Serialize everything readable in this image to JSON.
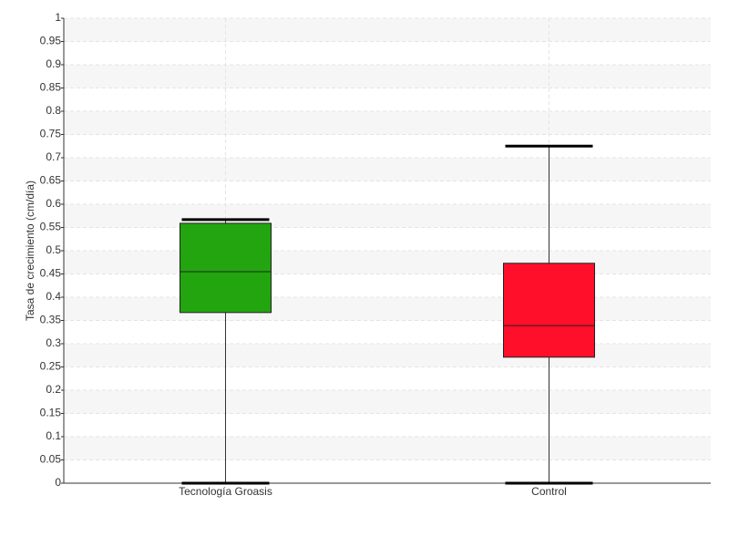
{
  "chart_data": {
    "type": "box",
    "y_label": "Tasa de crecimiento (cm/día)",
    "categories": [
      "Tecnología Groasis",
      "Control"
    ],
    "boxes": [
      {
        "min": 0,
        "q1": 0.367,
        "median": 0.455,
        "q3": 0.559,
        "max": 0.567
      },
      {
        "min": 0,
        "q1": 0.271,
        "median": 0.339,
        "q3": 0.473,
        "max": 0.725
      }
    ],
    "colors": [
      "#22a50f",
      "#ff0f2a"
    ],
    "ylim": [
      0,
      1
    ],
    "yticks": [
      0,
      0.05,
      0.1,
      0.15,
      0.2,
      0.25,
      0.3,
      0.35,
      0.4,
      0.45,
      0.5,
      0.55,
      0.6,
      0.65,
      0.7,
      0.75,
      0.8,
      0.85,
      0.9,
      0.95,
      1
    ],
    "grid": true
  }
}
